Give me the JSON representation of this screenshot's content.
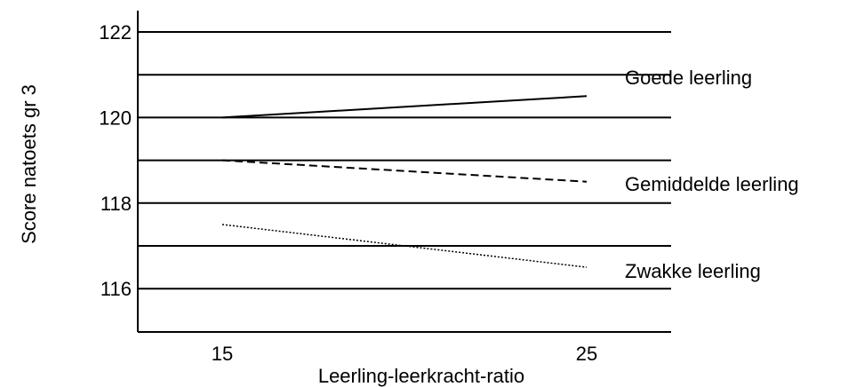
{
  "chart_data": {
    "type": "line",
    "xlabel": "Leerling-leerkracht-ratio",
    "ylabel": "Score natoets gr 3",
    "x": [
      15,
      25
    ],
    "xticks": [
      "15",
      "25"
    ],
    "xlim": [
      15,
      25
    ],
    "ylim": [
      115,
      122.5
    ],
    "yticks": [
      116,
      118,
      120,
      122
    ],
    "gridlines": [
      116,
      117,
      118,
      119,
      120,
      121,
      122
    ],
    "grid": true,
    "series": [
      {
        "name": "Goede leerling",
        "values": [
          120.0,
          120.5
        ],
        "style": "solid"
      },
      {
        "name": "Gemiddelde leerling",
        "values": [
          119.0,
          118.5
        ],
        "style": "dashed"
      },
      {
        "name": "Zwakke leerling",
        "values": [
          117.5,
          116.5
        ],
        "style": "dotted"
      }
    ],
    "colors": {
      "line": "#000000",
      "grid": "#000000"
    }
  }
}
